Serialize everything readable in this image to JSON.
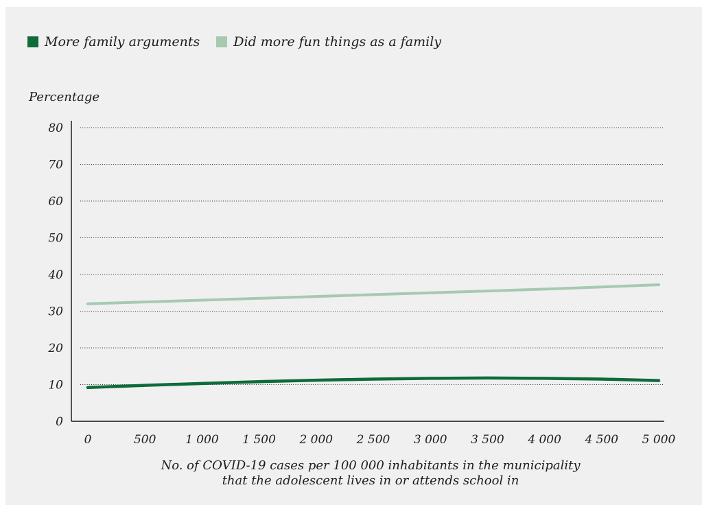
{
  "chart_data": {
    "type": "line",
    "title": "",
    "ylabel": "Percentage",
    "xlabel_line1": "No. of COVID-19 cases per 100 000 inhabitants in the municipality",
    "xlabel_line2": "that the adolescent lives in or attends school in",
    "ylim": [
      0,
      80
    ],
    "xlim": [
      0,
      5000
    ],
    "y_ticks": [
      0,
      10,
      20,
      30,
      40,
      50,
      60,
      70,
      80
    ],
    "x_ticks": [
      0,
      500,
      1000,
      1500,
      2000,
      2500,
      3000,
      3500,
      4000,
      4500,
      5000
    ],
    "x_tick_labels": [
      "0",
      "500",
      "1 000",
      "1 500",
      "2 000",
      "2 500",
      "3 000",
      "3 500",
      "4 000",
      "4 500",
      "5 000"
    ],
    "grid": "horizontal dotted",
    "legend_position": "top-left",
    "x": [
      0,
      500,
      1000,
      1500,
      2000,
      2500,
      3000,
      3500,
      4000,
      4500,
      5000
    ],
    "series": [
      {
        "name": "More family arguments",
        "color": "#0e6b3a",
        "values": [
          9.2,
          9.8,
          10.3,
          10.8,
          11.2,
          11.5,
          11.7,
          11.8,
          11.7,
          11.5,
          11.1
        ]
      },
      {
        "name": "Did more fun things as a family",
        "color": "#a6c9b2",
        "values": [
          32.0,
          32.5,
          33.0,
          33.5,
          34.0,
          34.5,
          35.0,
          35.5,
          36.0,
          36.6,
          37.2
        ]
      }
    ]
  }
}
